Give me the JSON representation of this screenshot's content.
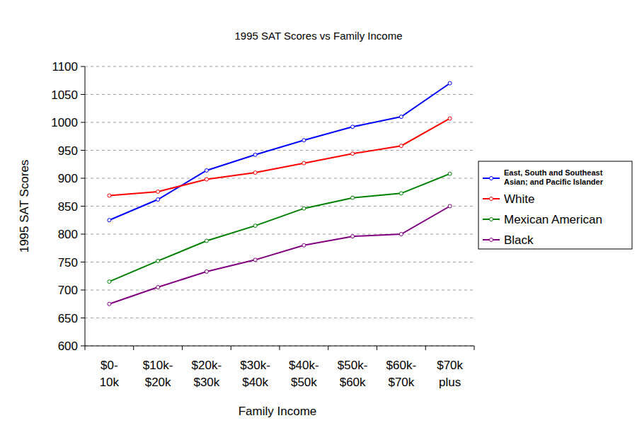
{
  "chart_data": {
    "type": "line",
    "title": "1995 SAT Scores vs Family Income",
    "x_label": "Family Income",
    "y_label": "1995 SAT Scores",
    "categories": [
      "$0-10k",
      "$10k-$20k",
      "$20k-$30k",
      "$30k-$40k",
      "$40k-$50k",
      "$50k-$60k",
      "$60k-$70k",
      "$70k plus"
    ],
    "series": [
      {
        "name": "East, South and Southeast Asian; and Pacific Islander",
        "color": "#0000ff",
        "values": [
          825,
          862,
          914,
          942,
          968,
          992,
          1010,
          1070
        ]
      },
      {
        "name": "White",
        "color": "#ff0000",
        "values": [
          869,
          876,
          898,
          910,
          927,
          944,
          958,
          1007
        ]
      },
      {
        "name": "Mexican American",
        "color": "#008000",
        "values": [
          715,
          752,
          788,
          815,
          846,
          865,
          873,
          908
        ]
      },
      {
        "name": "Black",
        "color": "#800080",
        "values": [
          675,
          705,
          733,
          754,
          780,
          796,
          800,
          850
        ]
      }
    ],
    "ylim": [
      600,
      1100
    ],
    "yticks": [
      600,
      650,
      700,
      750,
      800,
      850,
      900,
      950,
      1000,
      1050,
      1100
    ],
    "grid": true,
    "legend": "right",
    "marker": "circle"
  }
}
